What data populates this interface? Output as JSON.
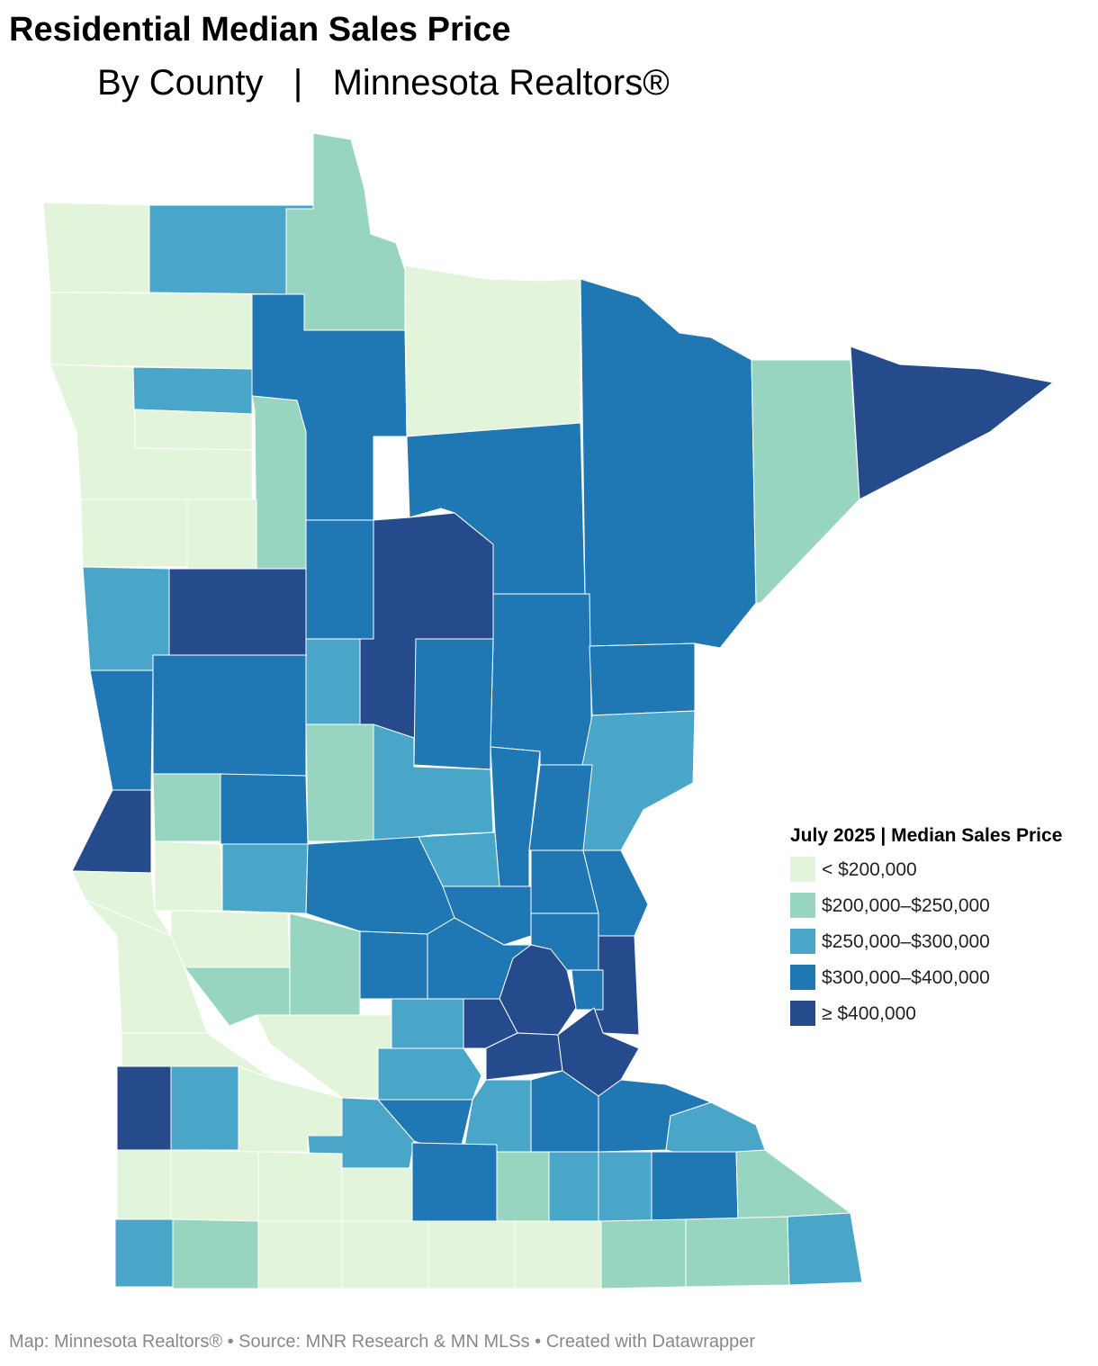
{
  "header": {
    "title": "Residential Median Sales Price",
    "subtitle": "By County   |   Minnesota Realtors®"
  },
  "legend": {
    "title": "July 2025 | Median Sales Price",
    "items": [
      {
        "label": "< $200,000",
        "color": "#e2f4d9"
      },
      {
        "label": "$200,000–$250,000",
        "color": "#98d5c1"
      },
      {
        "label": "$250,000–$300,000",
        "color": "#4aa6c9"
      },
      {
        "label": "$300,000–$400,000",
        "color": "#1f78b4"
      },
      {
        "label": "≥ $400,000",
        "color": "#264b8c"
      }
    ]
  },
  "footer": "Map: Minnesota Realtors® • Source: MNR Research & MN MLSs • Created with Datawrapper"
}
